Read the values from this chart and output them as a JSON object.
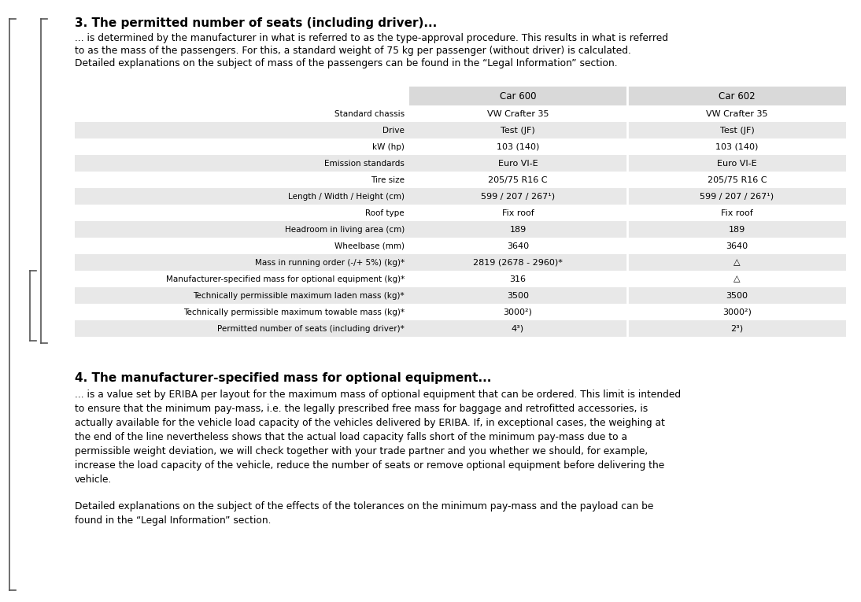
{
  "title3": "3. The permitted number of seats (including driver)...",
  "text3_lines": [
    "... is determined by the manufacturer in what is referred to as the type-approval procedure. This results in what is referred",
    "to as the mass of the passengers. For this, a standard weight of 75 kg per passenger (without driver) is calculated.",
    "Detailed explanations on the subject of mass of the passengers can be found in the “Legal Information” section."
  ],
  "table_headers": [
    "Car 600",
    "Car 602"
  ],
  "table_rows": [
    [
      "Standard chassis",
      "VW Crafter 35",
      "VW Crafter 35"
    ],
    [
      "Drive",
      "Test (JF)",
      "Test (JF)"
    ],
    [
      "kW (hp)",
      "103 (140)",
      "103 (140)"
    ],
    [
      "Emission standards",
      "Euro VI-E",
      "Euro VI-E"
    ],
    [
      "Tire size",
      "205/75 R16 C",
      "205/75 R16 C"
    ],
    [
      "Length / Width / Height (cm)",
      "599 / 207 / 267¹)",
      "599 / 207 / 267¹)"
    ],
    [
      "Roof type",
      "Fix roof",
      "Fix roof"
    ],
    [
      "Headroom in living area (cm)",
      "189",
      "189"
    ],
    [
      "Wheelbase (mm)",
      "3640",
      "3640"
    ],
    [
      "Mass in running order (-/+ 5%) (kg)*",
      "2819 (2678 - 2960)*",
      "△"
    ],
    [
      "Manufacturer-specified mass for optional equipment (kg)*",
      "316",
      "△"
    ],
    [
      "Technically permissible maximum laden mass (kg)*",
      "3500",
      "3500"
    ],
    [
      "Technically permissible maximum towable mass (kg)*",
      "3000²)",
      "3000²)"
    ],
    [
      "Permitted number of seats (including driver)*",
      "4³)",
      "2³)"
    ]
  ],
  "shaded_rows": [
    1,
    3,
    5,
    7,
    9,
    11,
    13
  ],
  "title4": "4. The manufacturer-specified mass for optional equipment...",
  "text4a_lines": [
    "... is a value set by ERIBA per layout for the maximum mass of optional equipment that can be ordered. This limit is intended",
    "to ensure that the minimum pay-mass, i.e. the legally prescribed free mass for baggage and retrofitted accessories, is",
    "actually available for the vehicle load capacity of the vehicles delivered by ERIBA. If, in exceptional cases, the weighing at",
    "the end of the line nevertheless shows that the actual load capacity falls short of the minimum pay-mass due to a",
    "permissible weight deviation, we will check together with your trade partner and you whether we should, for example,",
    "increase the load capacity of the vehicle, reduce the number of seats or remove optional equipment before delivering the",
    "vehicle."
  ],
  "text4b_lines": [
    "Detailed explanations on the subject of the effects of the tolerances on the minimum pay-mass and the payload can be",
    "found in the “Legal Information” section."
  ],
  "bg_color": "#ffffff",
  "text_color": "#000000",
  "header_bg": "#d9d9d9",
  "shaded_bg": "#e8e8e8",
  "title_color": "#000000",
  "bracket_color": "#555555"
}
